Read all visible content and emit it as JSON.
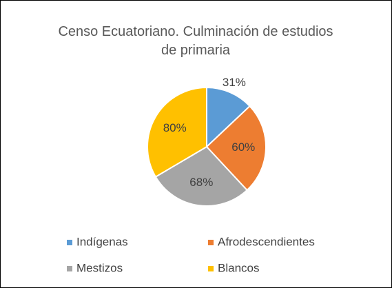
{
  "chart_data": {
    "type": "pie",
    "title": "Censo Ecuatoriano. Culminación de estudios de primaria",
    "categories": [
      "Indígenas",
      "Afrodescendientes",
      "Mestizos",
      "Blancos"
    ],
    "values": [
      31,
      60,
      68,
      80
    ],
    "value_labels": [
      "31%",
      "60%",
      "68%",
      "80%"
    ],
    "colors": [
      "#5b9bd5",
      "#ed7d31",
      "#a5a5a5",
      "#ffc000"
    ],
    "legend": "bottom"
  }
}
